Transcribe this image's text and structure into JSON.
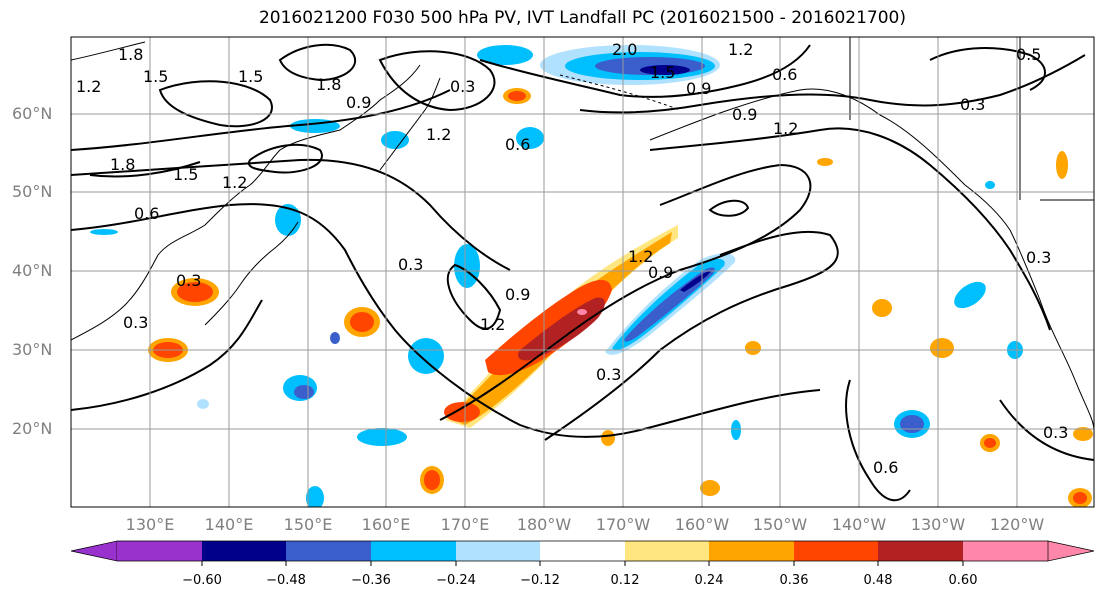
{
  "title": "2016021200 F030 500 hPa PV, IVT Landfall PC (2016021500 - 2016021700)",
  "lat_labels": [
    "60°N",
    "50°N",
    "40°N",
    "30°N",
    "20°N"
  ],
  "lon_labels": [
    "130°E",
    "140°E",
    "150°E",
    "160°E",
    "170°E",
    "180°W",
    "170°W",
    "160°W",
    "150°W",
    "140°W",
    "130°W",
    "120°W"
  ],
  "colorbar": {
    "ticks": [
      "−0.60",
      "−0.48",
      "−0.36",
      "−0.24",
      "−0.12",
      "0.12",
      "0.24",
      "0.36",
      "0.48",
      "0.60"
    ],
    "colors": [
      "#9932cc",
      "#00008b",
      "#3a5fcd",
      "#00bfff",
      "#b0e2ff",
      "#ffffff",
      "#ffe680",
      "#ffa500",
      "#ff4500",
      "#b22222",
      "#ff88aa"
    ]
  },
  "contour_labels": [
    "1.8",
    "1.5",
    "1.2",
    "1.2",
    "1.8",
    "1.5",
    "0.3",
    "0.9",
    "2.0",
    "1.5",
    "1.2",
    "0.6",
    "0.9",
    "0.9",
    "1.2",
    "0.5",
    "0.3",
    "1.8",
    "1.5",
    "1.2",
    "0.6",
    "0.6",
    "0.3",
    "0.3",
    "1.2",
    "0.9",
    "1.2",
    "0.9",
    "0.3",
    "0.3",
    "0.6",
    "0.3",
    "0.3"
  ]
}
